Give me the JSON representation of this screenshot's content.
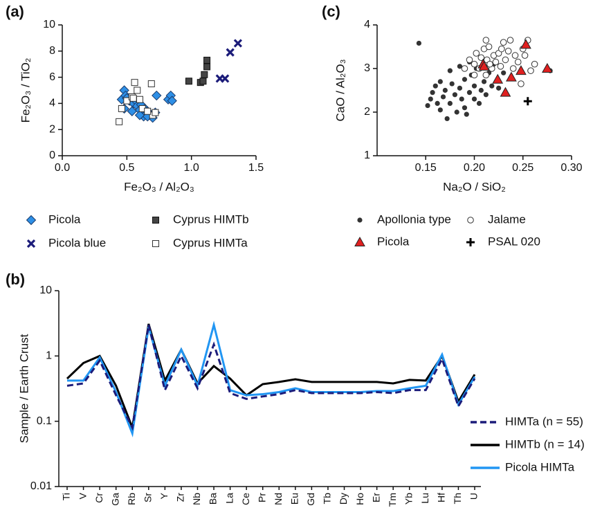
{
  "chart_data": [
    {
      "type": "scatter",
      "panel_label": "(a)",
      "x_label": "Fe₂O₃ / Al₂O₃",
      "y_label": "Fe₂O₃ / TiO₂",
      "xlim": [
        0,
        1.5
      ],
      "xticks": [
        {
          "value": 0,
          "label": "0.0"
        },
        0.5,
        {
          "value": 1,
          "label": "1.0"
        },
        1.5
      ],
      "ylim": [
        0,
        10
      ],
      "yticks": [
        0,
        2,
        4,
        6,
        8,
        10
      ],
      "series": [
        {
          "name": "Picola",
          "color": "#2e8fe6",
          "marker": "diamond",
          "x": [
            0.46,
            0.48,
            0.49,
            0.5,
            0.52,
            0.55,
            0.57,
            0.58,
            0.6,
            0.61,
            0.62,
            0.63,
            0.64,
            0.66,
            0.68,
            0.7,
            0.72,
            0.73,
            0.82,
            0.84,
            0.85,
            0.48,
            0.54,
            0.6,
            0.66
          ],
          "values": [
            4.3,
            5.0,
            4.6,
            4.4,
            4.2,
            4.0,
            4.2,
            3.8,
            3.5,
            3.9,
            3.2,
            3.0,
            3.6,
            3.4,
            3.1,
            2.9,
            3.3,
            4.6,
            4.3,
            4.6,
            4.2,
            3.6,
            3.4,
            3.1,
            3.0
          ]
        },
        {
          "name": "Picola blue",
          "color": "#1c1c7a",
          "marker": "x",
          "x": [
            1.22,
            1.26,
            1.3,
            1.36
          ],
          "values": [
            5.9,
            5.9,
            7.9,
            8.6
          ]
        },
        {
          "name": "Cyprus HIMTb",
          "color": "#444444",
          "marker": "square",
          "x": [
            0.98,
            1.07,
            1.09,
            1.1,
            1.12,
            1.12
          ],
          "values": [
            5.7,
            5.6,
            5.7,
            6.2,
            6.8,
            7.3
          ]
        },
        {
          "name": "Cyprus HIMTa",
          "color": "#ffffff",
          "marker": "open-square",
          "x": [
            0.44,
            0.46,
            0.5,
            0.54,
            0.55,
            0.56,
            0.58,
            0.6,
            0.62,
            0.7,
            0.72,
            0.69,
            0.66
          ],
          "values": [
            2.6,
            3.6,
            4.2,
            4.5,
            4.4,
            5.6,
            5.0,
            4.3,
            3.6,
            3.1,
            3.3,
            5.5,
            3.4
          ]
        }
      ]
    },
    {
      "type": "line",
      "panel_label": "(b)",
      "y_label": "Sample / Earth Crust",
      "log_scale": true,
      "categories": [
        "Ti",
        "V",
        "Cr",
        "Ga",
        "Rb",
        "Sr",
        "Y",
        "Zr",
        "Nb",
        "Ba",
        "La",
        "Ce",
        "Pr",
        "Nd",
        "Eu",
        "Gd",
        "Tb",
        "Dy",
        "Ho",
        "Er",
        "Tm",
        "Yb",
        "Lu",
        "Hf",
        "Th",
        "U"
      ],
      "ylim": [
        0.01,
        10
      ],
      "yticks": [
        0.01,
        0.1,
        1,
        10
      ],
      "series": [
        {
          "name": "HIMTa (n = 55)",
          "color": "#1c1c7a",
          "dashed": true,
          "values": [
            0.35,
            0.38,
            0.85,
            0.25,
            0.08,
            3.0,
            0.3,
            1.0,
            0.32,
            1.5,
            0.27,
            0.22,
            0.24,
            0.26,
            0.3,
            0.27,
            0.27,
            0.27,
            0.27,
            0.28,
            0.27,
            0.3,
            0.3,
            0.9,
            0.17,
            0.45
          ]
        },
        {
          "name": "HIMTb (n = 14)",
          "color": "#000000",
          "dashed": false,
          "values": [
            0.45,
            0.78,
            1.0,
            0.35,
            0.08,
            3.1,
            0.42,
            1.25,
            0.38,
            0.7,
            0.45,
            0.25,
            0.37,
            0.4,
            0.44,
            0.4,
            0.4,
            0.4,
            0.4,
            0.4,
            0.38,
            0.43,
            0.42,
            1.0,
            0.2,
            0.52
          ]
        },
        {
          "name": "Picola HIMTa",
          "color": "#2196f3",
          "dashed": false,
          "values": [
            0.42,
            0.42,
            0.95,
            0.28,
            0.065,
            2.8,
            0.35,
            1.25,
            0.35,
            3.0,
            0.3,
            0.25,
            0.26,
            0.28,
            0.32,
            0.28,
            0.28,
            0.28,
            0.28,
            0.29,
            0.29,
            0.32,
            0.35,
            1.05,
            0.18,
            0.48
          ]
        }
      ]
    },
    {
      "type": "scatter",
      "panel_label": "(c)",
      "x_label": "Na₂O / SiO₂",
      "y_label": "CaO / Al₂O₃",
      "xlim": [
        0.1,
        0.3
      ],
      "xticks": [
        0.15,
        {
          "value": 0.2,
          "label": "0.20"
        },
        0.25,
        {
          "value": 0.3,
          "label": "0.30"
        }
      ],
      "ylim": [
        1,
        4
      ],
      "yticks": [
        1,
        2,
        3,
        4
      ],
      "series": [
        {
          "name": "Apollonia type",
          "color": "#333333",
          "marker": "dot",
          "x": [
            0.143,
            0.152,
            0.155,
            0.157,
            0.16,
            0.162,
            0.165,
            0.168,
            0.17,
            0.172,
            0.175,
            0.177,
            0.18,
            0.182,
            0.185,
            0.187,
            0.19,
            0.19,
            0.192,
            0.195,
            0.197,
            0.2,
            0.2,
            0.202,
            0.205,
            0.207,
            0.21,
            0.212,
            0.215,
            0.218,
            0.22,
            0.225,
            0.23,
            0.185,
            0.175,
            0.195,
            0.165,
            0.278
          ],
          "values": [
            3.58,
            2.15,
            2.3,
            2.45,
            2.6,
            2.2,
            2.05,
            2.35,
            2.5,
            1.85,
            2.2,
            2.65,
            2.4,
            2.0,
            2.55,
            2.3,
            2.75,
            2.1,
            1.95,
            2.45,
            2.85,
            2.3,
            2.6,
            3.0,
            2.2,
            2.5,
            2.7,
            2.4,
            2.9,
            2.6,
            3.1,
            2.55,
            2.9,
            3.05,
            2.95,
            3.15,
            2.7,
            2.95
          ]
        },
        {
          "name": "Jalame",
          "color": "#ffffff",
          "marker": "open-circle",
          "x": [
            0.19,
            0.195,
            0.2,
            0.202,
            0.205,
            0.207,
            0.21,
            0.212,
            0.213,
            0.215,
            0.218,
            0.22,
            0.222,
            0.225,
            0.227,
            0.23,
            0.232,
            0.235,
            0.237,
            0.24,
            0.242,
            0.245,
            0.248,
            0.25,
            0.252,
            0.255,
            0.258,
            0.262,
            0.212,
            0.2,
            0.216,
            0.228
          ],
          "values": [
            3.0,
            3.2,
            3.1,
            3.35,
            3.0,
            3.25,
            3.45,
            3.65,
            3.2,
            3.5,
            3.0,
            3.3,
            3.15,
            3.35,
            3.05,
            3.6,
            3.2,
            3.4,
            3.65,
            3.0,
            3.3,
            3.15,
            2.65,
            3.45,
            3.3,
            3.65,
            2.95,
            3.1,
            2.85,
            2.85,
            3.1,
            3.45
          ]
        },
        {
          "name": "Picola",
          "color": "#e02020",
          "marker": "triangle",
          "x": [
            0.209,
            0.21,
            0.224,
            0.232,
            0.238,
            0.248,
            0.253,
            0.275
          ],
          "values": [
            3.1,
            3.05,
            2.75,
            2.45,
            2.8,
            2.95,
            3.55,
            3.0
          ]
        },
        {
          "name": "PSAL 020",
          "color": "#000000",
          "marker": "plus",
          "x": [
            0.255
          ],
          "values": [
            2.25
          ]
        }
      ]
    }
  ]
}
